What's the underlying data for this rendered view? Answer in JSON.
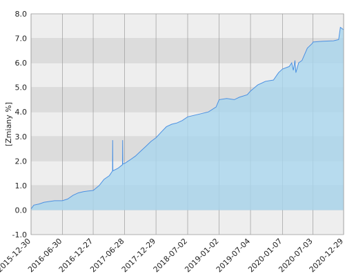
{
  "chart_data": {
    "type": "area",
    "y_label": "[Zmiany %]",
    "color": "#4a90e2",
    "fill_color": "#a9d6ee",
    "band_colors": [
      "#eeeeee",
      "#dcdcdc"
    ],
    "grid": true,
    "xlim": [
      "2015-12-30",
      "2020-12-29"
    ],
    "xticks": [
      "2015-12-30",
      "2016-06-30",
      "2016-12-27",
      "2017-06-28",
      "2017-12-29",
      "2018-07-02",
      "2019-01-02",
      "2019-07-04",
      "2020-01-07",
      "2020-07-03",
      "2020-12-29"
    ],
    "ylim": [
      -1,
      8
    ],
    "yticks": [
      {
        "value": -1,
        "label": "-1.0"
      },
      {
        "value": 0,
        "label": "0.0"
      },
      {
        "value": 1,
        "label": "1.0"
      },
      {
        "value": 2,
        "label": "2.0"
      },
      {
        "value": 3,
        "label": "3.0"
      },
      {
        "value": 4,
        "label": "4.0"
      },
      {
        "value": 5,
        "label": "5.0"
      },
      {
        "value": 6,
        "label": "6.0"
      },
      {
        "value": 7,
        "label": "7.0"
      },
      {
        "value": 8,
        "label": "8.0"
      }
    ],
    "x": [
      "2015-12-30",
      "2016-01-15",
      "2016-02-15",
      "2016-03-15",
      "2016-04-15",
      "2016-05-15",
      "2016-06-30",
      "2016-07-31",
      "2016-08-31",
      "2016-09-30",
      "2016-10-31",
      "2016-11-30",
      "2016-12-27",
      "2017-01-31",
      "2017-02-28",
      "2017-03-31",
      "2017-04-19",
      "2017-04-20",
      "2017-04-21",
      "2017-05-20",
      "2017-06-16",
      "2017-06-17",
      "2017-06-18",
      "2017-06-28",
      "2017-07-31",
      "2017-08-31",
      "2017-09-30",
      "2017-10-31",
      "2017-11-30",
      "2017-12-29",
      "2018-01-31",
      "2018-02-28",
      "2018-03-31",
      "2018-04-30",
      "2018-05-31",
      "2018-07-02",
      "2018-08-31",
      "2018-10-31",
      "2018-12-15",
      "2019-01-02",
      "2019-02-15",
      "2019-03-31",
      "2019-04-30",
      "2019-06-15",
      "2019-07-04",
      "2019-08-15",
      "2019-09-30",
      "2019-11-15",
      "2019-12-15",
      "2020-01-07",
      "2020-02-15",
      "2020-03-01",
      "2020-03-10",
      "2020-03-20",
      "2020-03-25",
      "2020-04-10",
      "2020-04-30",
      "2020-05-31",
      "2020-06-30",
      "2020-07-03",
      "2020-08-31",
      "2020-10-31",
      "2020-11-30",
      "2020-12-10",
      "2020-12-29"
    ],
    "values": [
      0.05,
      0.2,
      0.25,
      0.32,
      0.35,
      0.38,
      0.38,
      0.45,
      0.6,
      0.7,
      0.75,
      0.78,
      0.8,
      1.0,
      1.25,
      1.4,
      1.6,
      2.85,
      1.6,
      1.7,
      1.85,
      2.85,
      1.88,
      1.9,
      2.05,
      2.2,
      2.4,
      2.6,
      2.8,
      2.95,
      3.2,
      3.4,
      3.5,
      3.55,
      3.65,
      3.8,
      3.9,
      4.0,
      4.2,
      4.5,
      4.55,
      4.5,
      4.6,
      4.7,
      4.85,
      5.1,
      5.25,
      5.3,
      5.6,
      5.75,
      5.85,
      6.0,
      5.7,
      6.1,
      5.6,
      6.0,
      6.1,
      6.6,
      6.8,
      6.85,
      6.88,
      6.9,
      6.95,
      7.45,
      7.35
    ]
  }
}
